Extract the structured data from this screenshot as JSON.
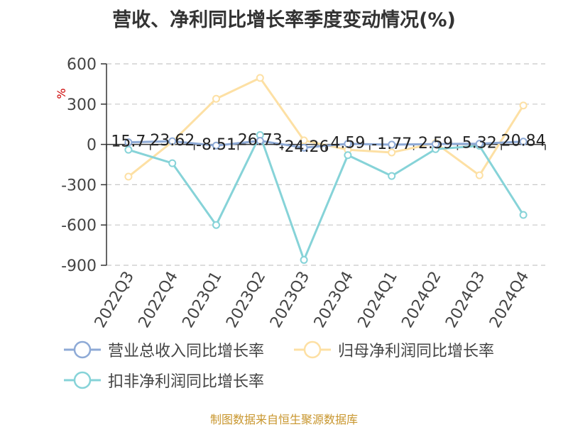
{
  "title": "营收、净利同比增长率季度变动情况(%)",
  "footer": "制图数据来自恒生聚源数据库",
  "colors": {
    "revenue": "#8eaad6",
    "net_profit": "#fde0a4",
    "deducted_profit": "#86d3d8",
    "axis": "#333333",
    "grid": "#c8c8c8",
    "unit_label": "#cc0000"
  },
  "chart_data": {
    "type": "line",
    "title": "营收、净利同比增长率季度变动情况(%)",
    "ylabel": "%",
    "ylim": [
      -900,
      600
    ],
    "yticks": [
      600,
      300,
      0,
      -300,
      -600,
      -900
    ],
    "grid": true,
    "legend_position": "bottom",
    "categories": [
      "2022Q3",
      "2022Q4",
      "2023Q1",
      "2023Q2",
      "2023Q3",
      "2023Q4",
      "2024Q1",
      "2024Q2",
      "2024Q3",
      "2024Q4"
    ],
    "series": [
      {
        "name": "营业总收入同比增长率",
        "values": [
          15.7,
          23.62,
          -8.51,
          26.73,
          -24.26,
          4.59,
          -1.77,
          2.59,
          5.32,
          20.84
        ],
        "labels": [
          "15.7",
          "23.62",
          "-8.51",
          "26.73",
          "-24.26",
          "4.59",
          "-1.77",
          "2.59",
          "5.32",
          "20.84"
        ]
      },
      {
        "name": "归母净利润同比增长率",
        "values": [
          -240,
          20,
          340,
          495,
          30,
          -40,
          -60,
          10,
          -230,
          290
        ]
      },
      {
        "name": "扣非净利润同比增长率",
        "values": [
          -40,
          -140,
          -600,
          70,
          -860,
          -80,
          -235,
          -35,
          -10,
          -525
        ]
      }
    ]
  }
}
